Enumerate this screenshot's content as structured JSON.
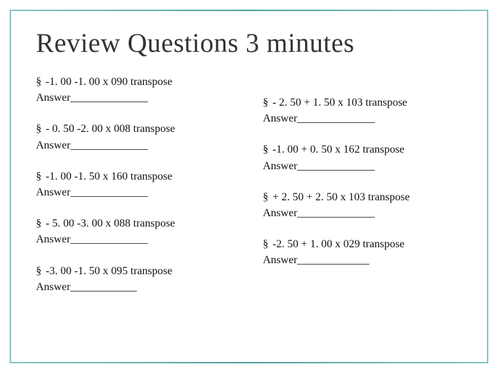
{
  "title": "Review Questions 3 minutes",
  "glyph": "§",
  "colors": {
    "text": "#111111",
    "title": "#333333",
    "border_gradient": [
      "#7fc4c4",
      "#4a9e9e",
      "#7fc4c4"
    ],
    "background": "#ffffff"
  },
  "typography": {
    "title_fontsize": 39,
    "body_fontsize": 16,
    "font_family": "Georgia"
  },
  "left_items": [
    {
      "q": "-1. 00 -1. 00 x 090 transpose",
      "a": "Answer______________"
    },
    {
      "q": "- 0. 50  -2. 00 x 008 transpose",
      "a": "Answer______________"
    },
    {
      "q": "-1. 00 -1. 50 x 160 transpose",
      "a": "Answer______________"
    },
    {
      "q": "- 5. 00  -3. 00 x 088 transpose",
      "a": "Answer______________"
    },
    {
      "q": "-3. 00 -1. 50 x 095 transpose",
      "a": "Answer____________"
    }
  ],
  "right_items": [
    {
      "q": "- 2. 50 + 1. 50 x 103 transpose",
      "a": "Answer______________"
    },
    {
      "q": "-1. 00 + 0. 50 x 162 transpose",
      "a": "Answer______________"
    },
    {
      "q": "+ 2. 50 + 2. 50 x 103 transpose",
      "a": "Answer______________"
    },
    {
      "q": "-2. 50 + 1. 00 x 029 transpose",
      "a": "Answer_____________"
    }
  ]
}
